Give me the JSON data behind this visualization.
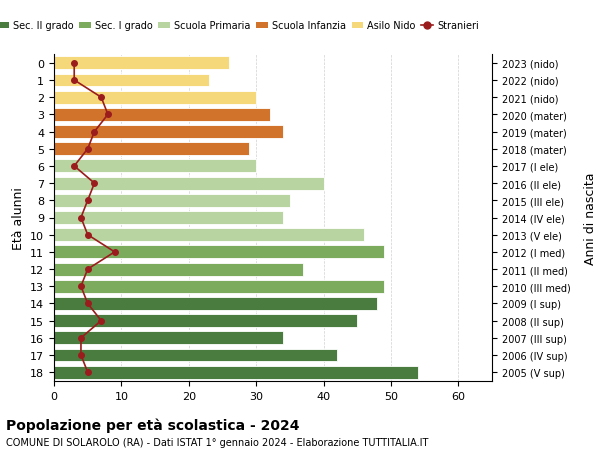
{
  "ages": [
    18,
    17,
    16,
    15,
    14,
    13,
    12,
    11,
    10,
    9,
    8,
    7,
    6,
    5,
    4,
    3,
    2,
    1,
    0
  ],
  "years": [
    "2005 (V sup)",
    "2006 (IV sup)",
    "2007 (III sup)",
    "2008 (II sup)",
    "2009 (I sup)",
    "2010 (III med)",
    "2011 (II med)",
    "2012 (I med)",
    "2013 (V ele)",
    "2014 (IV ele)",
    "2015 (III ele)",
    "2016 (II ele)",
    "2017 (I ele)",
    "2018 (mater)",
    "2019 (mater)",
    "2020 (mater)",
    "2021 (nido)",
    "2022 (nido)",
    "2023 (nido)"
  ],
  "bar_values": [
    54,
    42,
    34,
    45,
    48,
    49,
    37,
    49,
    46,
    34,
    35,
    40,
    30,
    29,
    34,
    32,
    30,
    23,
    26
  ],
  "bar_colors": [
    "#4a7c3f",
    "#4a7c3f",
    "#4a7c3f",
    "#4a7c3f",
    "#4a7c3f",
    "#7dab5e",
    "#7dab5e",
    "#7dab5e",
    "#b8d4a0",
    "#b8d4a0",
    "#b8d4a0",
    "#b8d4a0",
    "#b8d4a0",
    "#d2732c",
    "#d2732c",
    "#d2732c",
    "#f5d87a",
    "#f5d87a",
    "#f5d87a"
  ],
  "stranieri_values": [
    5,
    4,
    4,
    7,
    5,
    4,
    5,
    9,
    5,
    4,
    5,
    6,
    3,
    5,
    6,
    8,
    7,
    3,
    3
  ],
  "stranieri_color": "#9b1c1c",
  "legend_labels": [
    "Sec. II grado",
    "Sec. I grado",
    "Scuola Primaria",
    "Scuola Infanzia",
    "Asilo Nido",
    "Stranieri"
  ],
  "legend_colors": [
    "#4a7c3f",
    "#7dab5e",
    "#b8d4a0",
    "#d2732c",
    "#f5d87a",
    "#9b1c1c"
  ],
  "ylabel": "Età alunni",
  "ylabel_right": "Anni di nascita",
  "title": "Popolazione per età scolastica - 2024",
  "subtitle": "COMUNE DI SOLAROLO (RA) - Dati ISTAT 1° gennaio 2024 - Elaborazione TUTTITALIA.IT",
  "xlim": [
    0,
    65
  ],
  "xticks": [
    0,
    10,
    20,
    30,
    40,
    50,
    60
  ],
  "background_color": "#ffffff",
  "grid_color": "#cccccc"
}
